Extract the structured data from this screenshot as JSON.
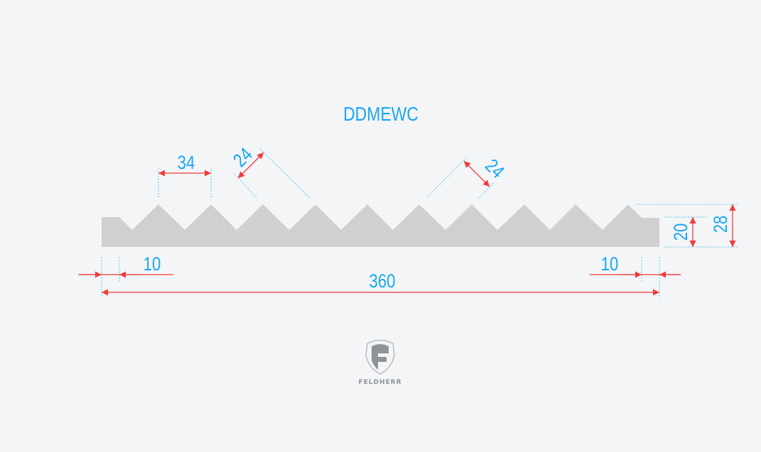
{
  "title": "DDMEWC",
  "dimensions": {
    "tooth_pitch": "34",
    "tooth_flank_left": "24",
    "tooth_flank_right": "24",
    "base_height": "20",
    "total_height": "28",
    "left_edge": "10",
    "right_edge": "10",
    "total_width": "360"
  },
  "logo": {
    "text": "FELDHERR",
    "icon": "shield-f-logo-icon"
  },
  "colors": {
    "dimension_text": "#1aa6f2",
    "dimension_arrow": "#f23a3a",
    "profile_fill": "#d0d0d0",
    "background": "#f3f5f7"
  }
}
